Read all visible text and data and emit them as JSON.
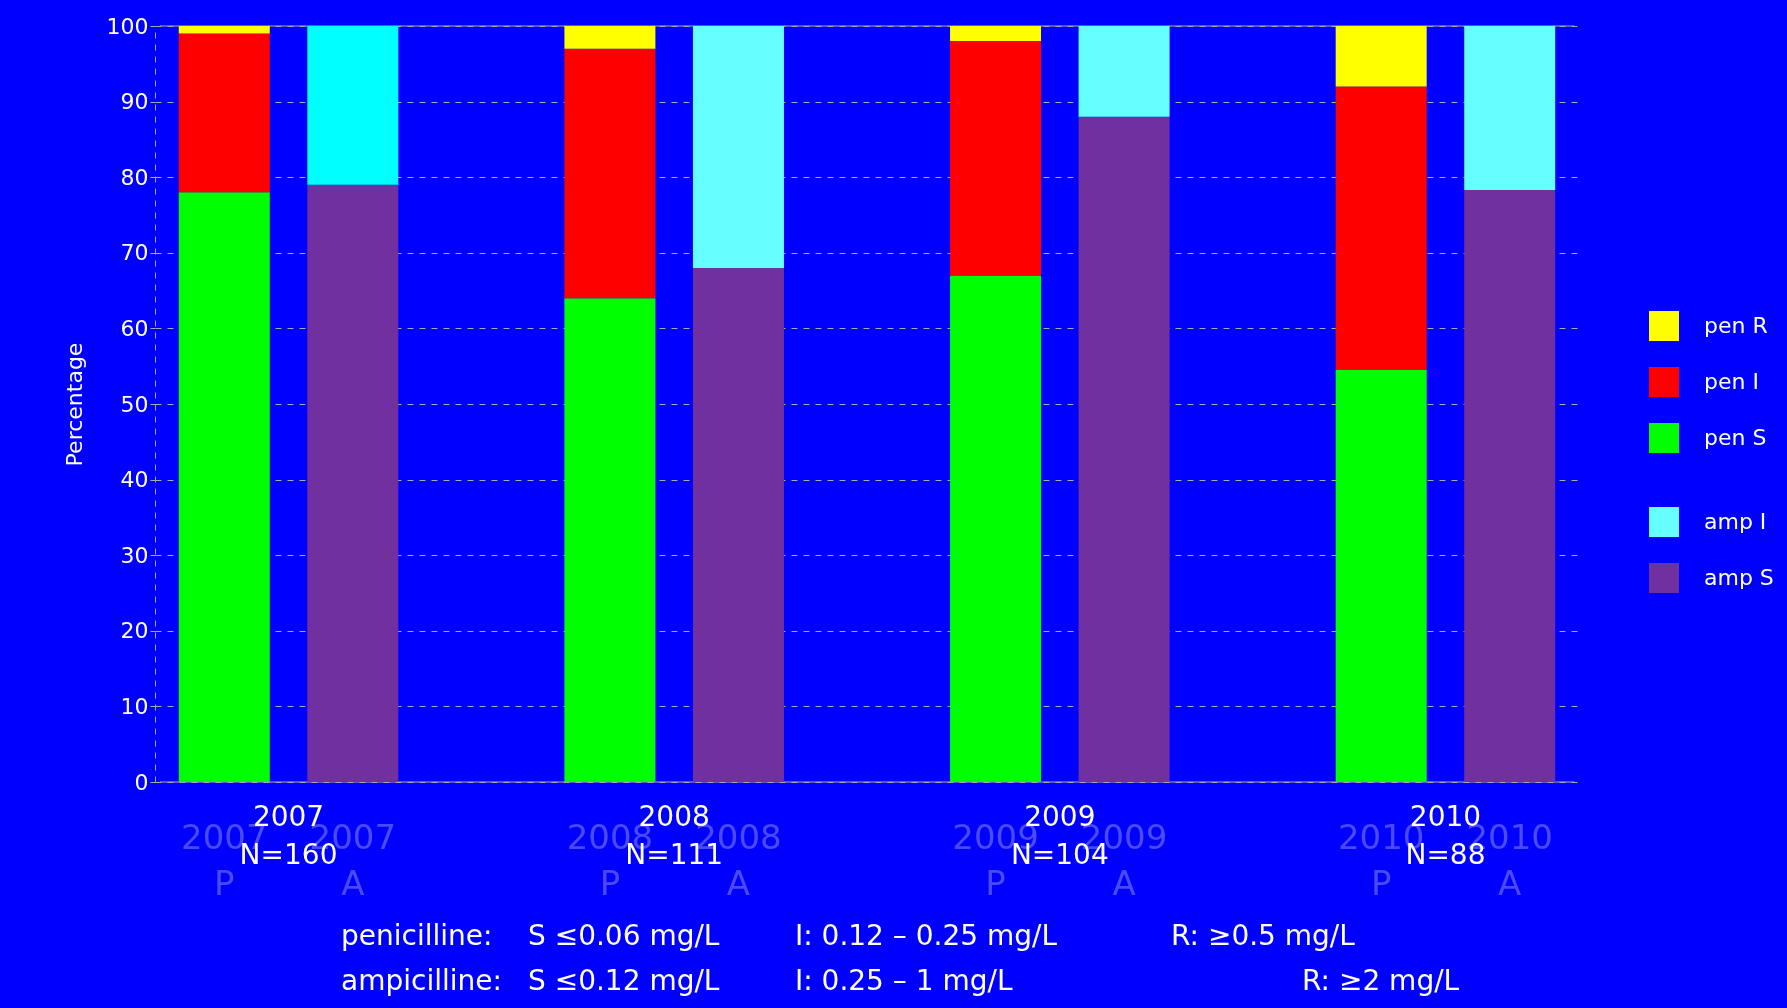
{
  "chart_data": {
    "type": "bar",
    "stacked": true,
    "ylabel": "Percentage",
    "categories": [
      "2007\nP",
      "2007\nA",
      "2008\nP",
      "2008\nA",
      "2009\nP",
      "2009\nA",
      "2010\nP",
      "2010\nA"
    ],
    "series": [
      {
        "name": "pen S",
        "color": "#00ff00",
        "values": [
          78,
          null,
          64,
          null,
          67,
          null,
          54.5,
          null
        ]
      },
      {
        "name": "pen I",
        "color": "#ff0000",
        "values": [
          21,
          null,
          33,
          null,
          31,
          null,
          37.5,
          null
        ]
      },
      {
        "name": "pen R",
        "color": "#ffff00",
        "values": [
          1,
          null,
          3,
          null,
          2,
          null,
          8,
          null
        ]
      },
      {
        "name": "amp S",
        "color": "#7030a0",
        "values": [
          null,
          79,
          null,
          68,
          null,
          88,
          null,
          78.3
        ]
      },
      {
        "name": "amp I",
        "color": "#66ffff",
        "colors": [
          null,
          "#00ffff",
          null,
          "#66ffff",
          null,
          "#66ffff",
          null,
          "#66ffff"
        ],
        "values": [
          null,
          21,
          null,
          32,
          null,
          12,
          null,
          21.7
        ]
      }
    ],
    "ylim": [
      0,
      100
    ],
    "yticks": [
      0,
      10,
      20,
      30,
      40,
      50,
      60,
      70,
      80,
      90,
      100
    ],
    "grid": "y",
    "legend": "right",
    "annotations": [
      "2007\nN=160",
      "2008\nN=111",
      "2009\nN=104",
      "2010\nN=88",
      "penicilline:",
      "S ≤0.06 mg/L",
      "I: 0.12 – 0.25 mg/L",
      "R: ≥0.5 mg/L",
      "ampicilline:",
      "S ≤0.12 mg/L",
      "I: 0.25 – 1 mg/L",
      "R: ≥2 mg/L"
    ]
  }
}
